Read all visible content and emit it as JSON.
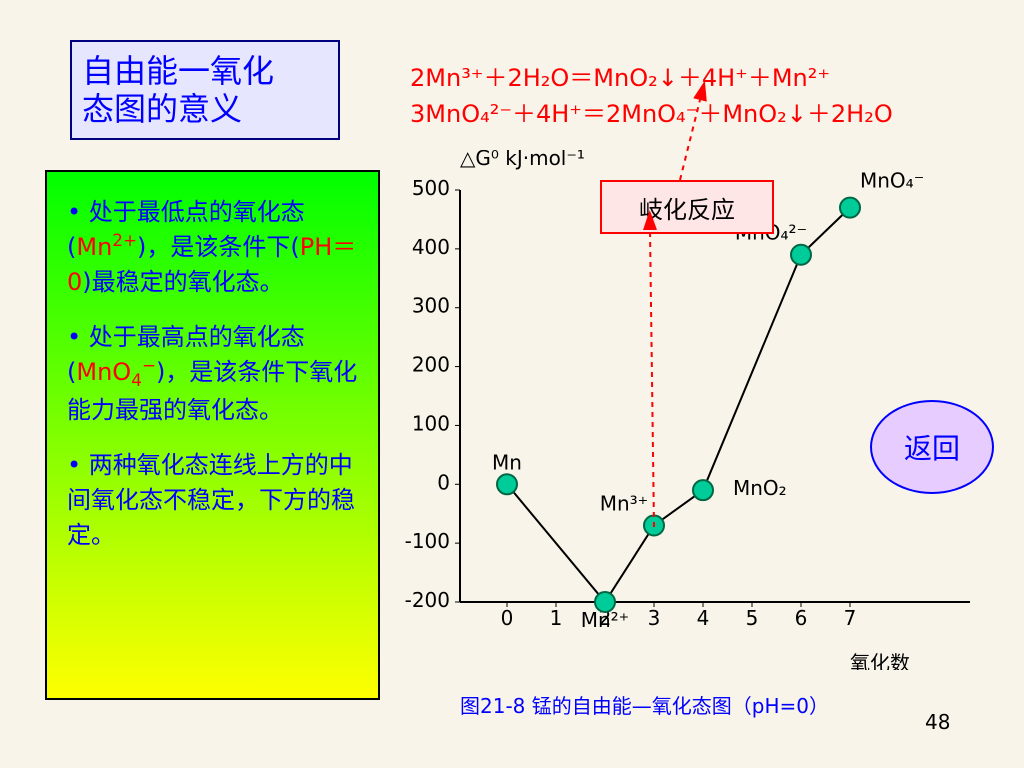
{
  "title": {
    "line1": "自由能一氧化",
    "line2": "态图的意义"
  },
  "equations": [
    "2Mn³⁺＋2H₂O＝MnO₂↓＋4H⁺＋Mn²⁺",
    "3MnO₄²⁻＋4H⁺＝2MnO₄⁻＋MnO₂↓＋2H₂O"
  ],
  "leftPanel": {
    "bullets": [
      {
        "segments": [
          {
            "text": "处于最低点的氧化态(",
            "color": "blue"
          },
          {
            "text": "Mn",
            "color": "red"
          },
          {
            "text": "2+",
            "color": "red",
            "superscript": true
          },
          {
            "text": ")，是该条件下(",
            "color": "blue"
          },
          {
            "text": "PH＝0",
            "color": "red"
          },
          {
            "text": ")最稳定的氧化态。",
            "color": "blue"
          }
        ]
      },
      {
        "segments": [
          {
            "text": "处于最高点的氧化态(",
            "color": "blue"
          },
          {
            "text": "MnO",
            "color": "red"
          },
          {
            "text": "4",
            "color": "red",
            "subscript": true
          },
          {
            "text": "−",
            "color": "red",
            "superscript": true
          },
          {
            "text": ")，是该条件下氧化能力最强的氧化态。",
            "color": "blue"
          }
        ]
      },
      {
        "segments": [
          {
            "text": "两种氧化态连线上方的中间氧化态不稳定，下方的稳定。",
            "color": "blue"
          }
        ]
      }
    ]
  },
  "chart": {
    "yAxisLabel": "△G⁰ kJ·mol⁻¹",
    "xAxisLabel": "氧化数",
    "yTicks": [
      500,
      400,
      300,
      200,
      100,
      0,
      -100,
      -200
    ],
    "xTicks": [
      0,
      1,
      2,
      3,
      4,
      5,
      6,
      7
    ],
    "points": [
      {
        "x": 0,
        "y": 0,
        "label": "Mn"
      },
      {
        "x": 2,
        "y": -200,
        "label": "Mn²⁺"
      },
      {
        "x": 3,
        "y": -70,
        "label": "Mn³⁺"
      },
      {
        "x": 4,
        "y": -10,
        "label": "MnO₂"
      },
      {
        "x": 6,
        "y": 390,
        "label": "MnO₄²⁻"
      },
      {
        "x": 7,
        "y": 470,
        "label": "MnO₄⁻"
      }
    ]
  },
  "disproportionationBox": "岐化反应",
  "caption": "图21-8 锰的自由能—氧化态图（pH=0）",
  "pageNumber": "48",
  "returnButton": "返回"
}
